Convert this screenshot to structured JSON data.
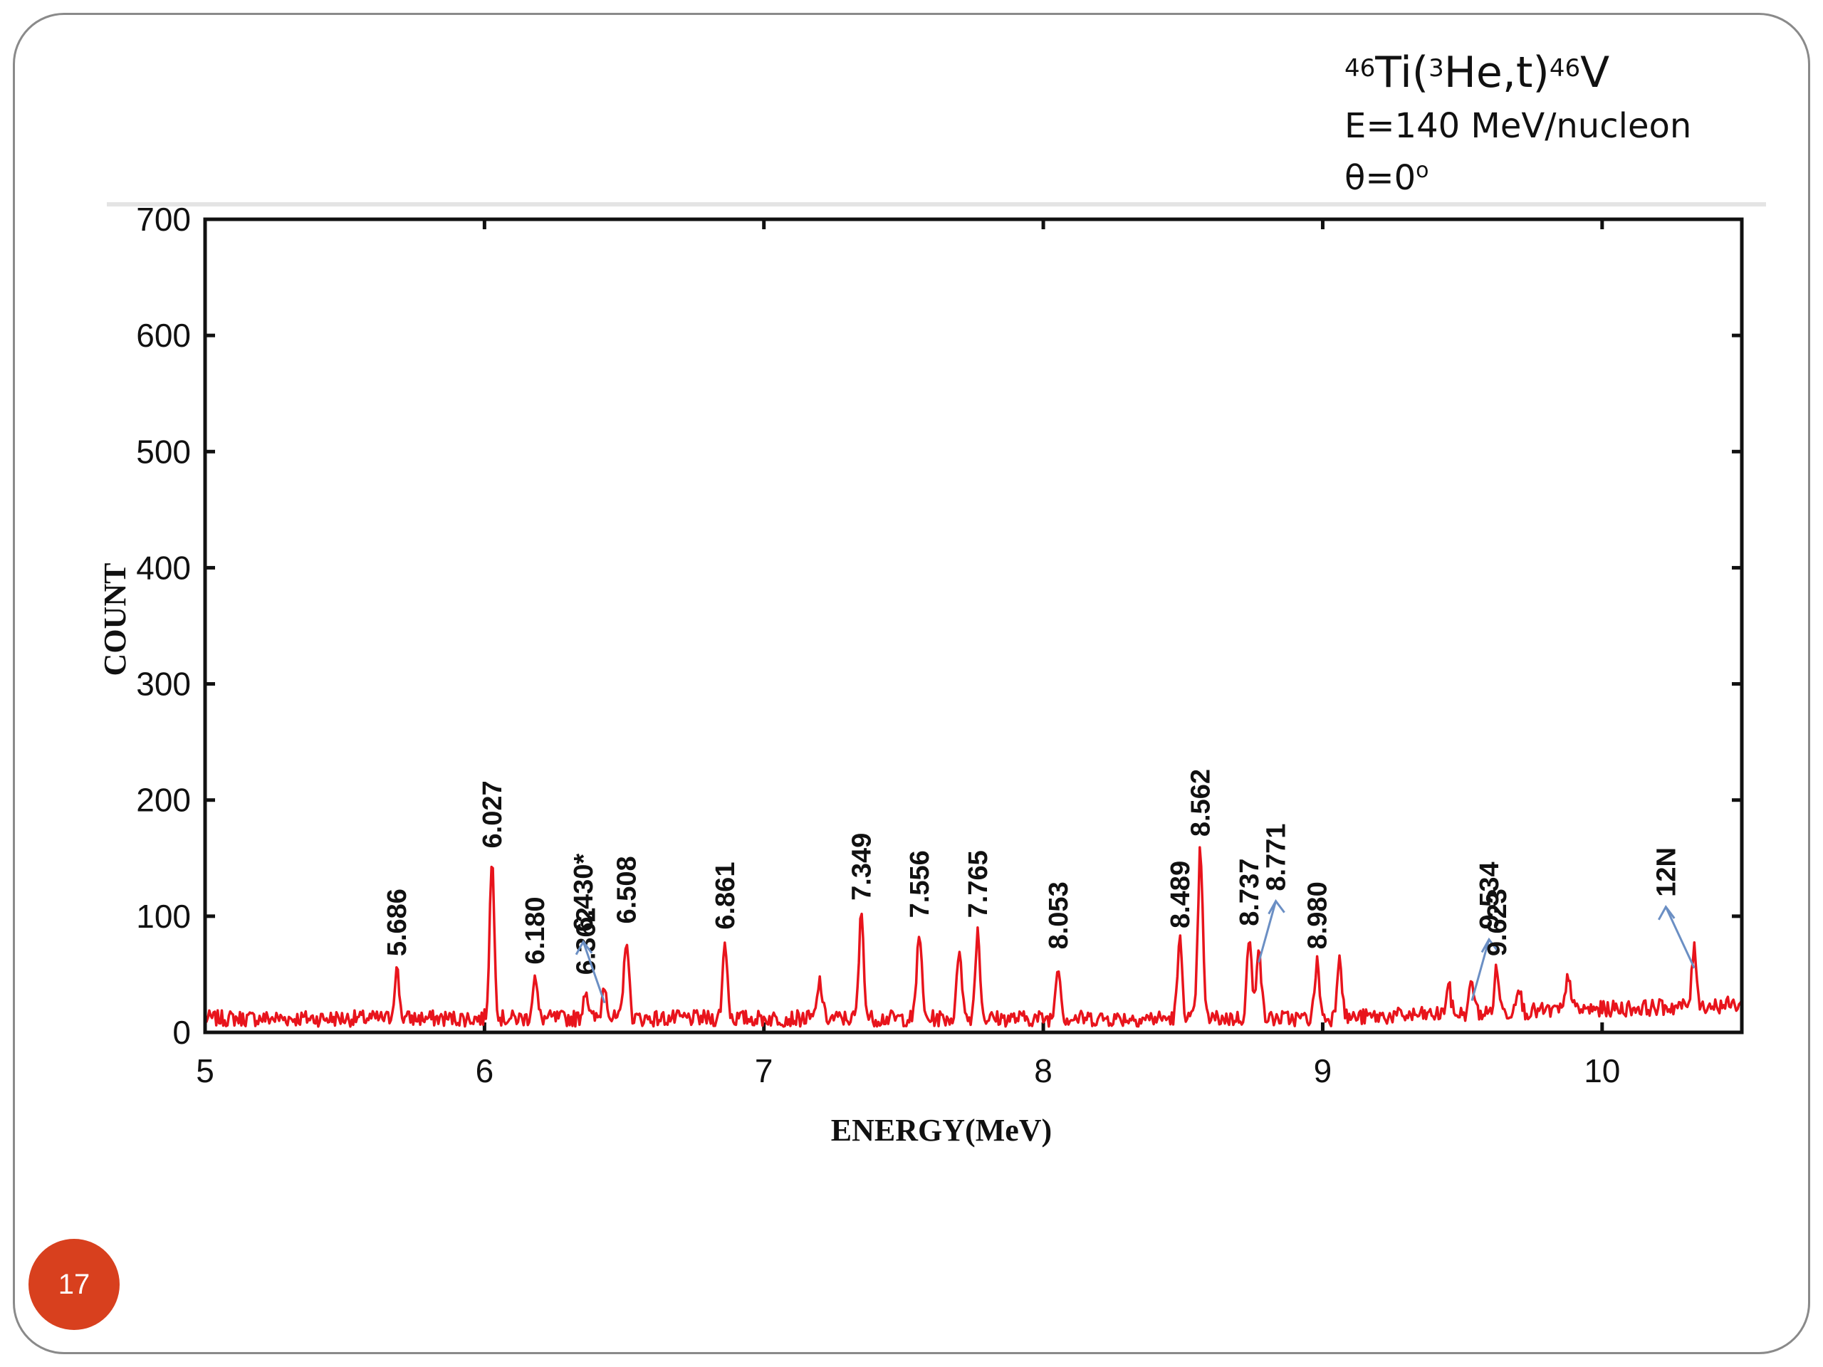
{
  "slide": {
    "page_number": "17",
    "accent_color": "#d8401e"
  },
  "reaction": {
    "mass_target": "46",
    "target": "Ti(",
    "projectile_mass": "3",
    "projectile": "He,t)",
    "mass_residual": "46",
    "residual": "V",
    "energy": "E=140 MeV/nucleon",
    "angle": "θ=0",
    "angle_unit": "o"
  },
  "chart_data": {
    "type": "line",
    "xlabel": "ENERGY(MeV)",
    "ylabel": "COUNT",
    "xlim": [
      5,
      10.5
    ],
    "ylim": [
      0,
      700
    ],
    "x_ticks": [
      5,
      6,
      7,
      8,
      9,
      10
    ],
    "y_ticks": [
      0,
      100,
      200,
      300,
      400,
      500,
      600,
      700
    ],
    "line_color": "#e8141c",
    "background_level": 10,
    "peaks": [
      {
        "x": 5.686,
        "y": 52
      },
      {
        "x": 6.027,
        "y": 145
      },
      {
        "x": 6.18,
        "y": 45
      },
      {
        "x": 6.362,
        "y": 36
      },
      {
        "x": 6.43,
        "y": 40
      },
      {
        "x": 6.508,
        "y": 80
      },
      {
        "x": 6.861,
        "y": 75
      },
      {
        "x": 7.2,
        "y": 42
      },
      {
        "x": 7.349,
        "y": 100
      },
      {
        "x": 7.556,
        "y": 85
      },
      {
        "x": 7.7,
        "y": 72
      },
      {
        "x": 7.765,
        "y": 85
      },
      {
        "x": 8.053,
        "y": 58
      },
      {
        "x": 8.489,
        "y": 76
      },
      {
        "x": 8.562,
        "y": 155
      },
      {
        "x": 8.737,
        "y": 78
      },
      {
        "x": 8.771,
        "y": 75
      },
      {
        "x": 8.98,
        "y": 58
      },
      {
        "x": 9.06,
        "y": 66
      },
      {
        "x": 9.45,
        "y": 38
      },
      {
        "x": 9.534,
        "y": 42
      },
      {
        "x": 9.623,
        "y": 52
      },
      {
        "x": 9.7,
        "y": 40
      },
      {
        "x": 9.88,
        "y": 48
      },
      {
        "x": 10.33,
        "y": 70
      }
    ],
    "annotations": [
      {
        "text": "5.686",
        "x": 5.686,
        "y": 52
      },
      {
        "text": "6.027",
        "x": 6.027,
        "y": 145
      },
      {
        "text": "6.180",
        "x": 6.18,
        "y": 45
      },
      {
        "text": "6.362",
        "x": 6.362,
        "y": 36
      },
      {
        "text": "6.430*",
        "x": 6.43,
        "y": 40,
        "arrow": true
      },
      {
        "text": "6.508",
        "x": 6.508,
        "y": 80
      },
      {
        "text": "6.861",
        "x": 6.861,
        "y": 75
      },
      {
        "text": "7.349",
        "x": 7.349,
        "y": 100
      },
      {
        "text": "7.556",
        "x": 7.556,
        "y": 85
      },
      {
        "text": "7.765",
        "x": 7.765,
        "y": 85
      },
      {
        "text": "8.053",
        "x": 8.053,
        "y": 58
      },
      {
        "text": "8.489",
        "x": 8.489,
        "y": 76
      },
      {
        "text": "8.562",
        "x": 8.562,
        "y": 155
      },
      {
        "text": "8.737",
        "x": 8.737,
        "y": 78
      },
      {
        "text": "8.771",
        "x": 8.771,
        "y": 75,
        "arrow": true
      },
      {
        "text": "8.980",
        "x": 8.98,
        "y": 58
      },
      {
        "text": "9.534",
        "x": 9.534,
        "y": 42,
        "arrow": true
      },
      {
        "text": "9.623",
        "x": 9.623,
        "y": 52
      },
      {
        "text": "12N",
        "x": 10.33,
        "y": 70,
        "arrow": true,
        "color": "#2b4f8c"
      }
    ]
  }
}
